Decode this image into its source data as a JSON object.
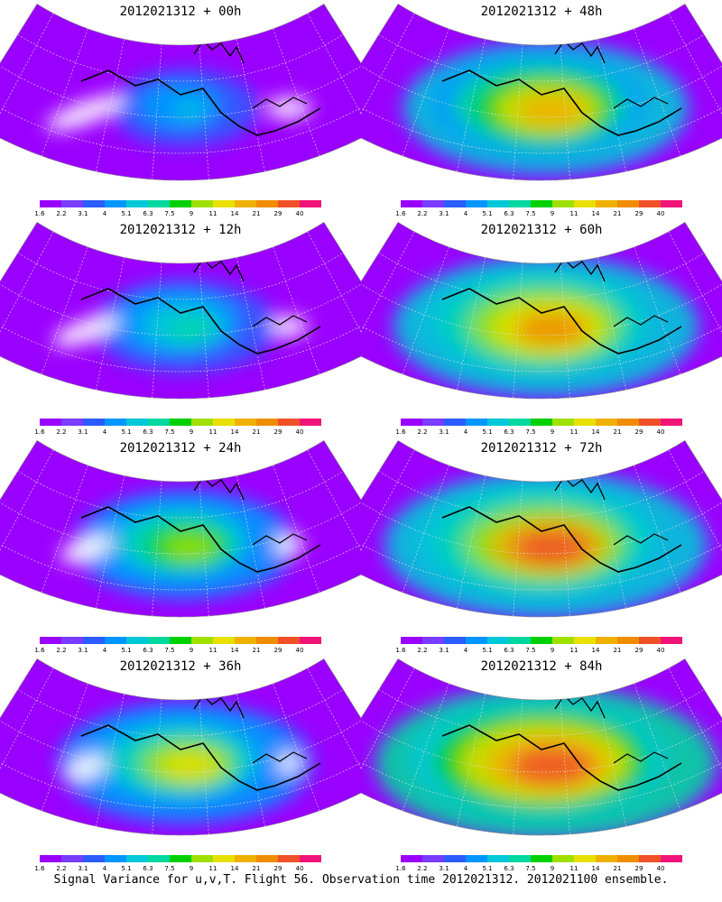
{
  "caption": "Signal Variance for u,v,T. Flight 56. Observation time 2012021312. 2012021100 ensemble.",
  "panels": [
    {
      "title": "2012021312 + 00h",
      "intensity": 0.15
    },
    {
      "title": "2012021312 + 48h",
      "intensity": 0.7
    },
    {
      "title": "2012021312 + 12h",
      "intensity": 0.3
    },
    {
      "title": "2012021312 + 60h",
      "intensity": 0.78
    },
    {
      "title": "2012021312 + 24h",
      "intensity": 0.45
    },
    {
      "title": "2012021312 + 72h",
      "intensity": 0.85
    },
    {
      "title": "2012021312 + 36h",
      "intensity": 0.58
    },
    {
      "title": "2012021312 + 84h",
      "intensity": 0.92
    }
  ],
  "colorbar": {
    "labels": [
      "1.6",
      "2.2",
      "3.1",
      "4",
      "5.1",
      "6.3",
      "7.5",
      "9",
      "11",
      "14",
      "21",
      "29",
      "40"
    ],
    "colors": [
      "#9a00ff",
      "#7a3cff",
      "#2b5cff",
      "#0096ff",
      "#00c8d8",
      "#00d8a0",
      "#00d000",
      "#a0e000",
      "#e8e000",
      "#f0b000",
      "#f08c00",
      "#f05028",
      "#f01478"
    ]
  }
}
